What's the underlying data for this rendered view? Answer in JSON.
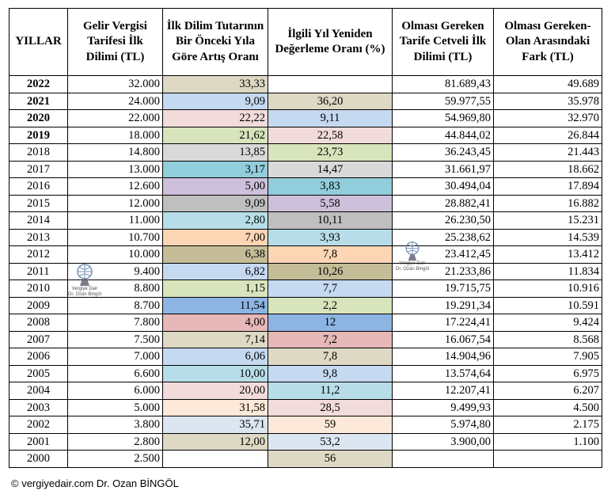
{
  "headers": [
    "YILLAR",
    "Gelir Vergisi Tarifesi İlk Dilimi (TL)",
    "İlk Dilim Tutarının Bir Önceki Yıla Göre Artış Oranı",
    "İlgili Yıl Yeniden Değerleme Oranı (%)",
    "Olması Gereken Tarife Cetveli İlk Dilimi (TL)",
    "Olması Gereken-Olan Arasındaki Fark (TL)"
  ],
  "rows": [
    {
      "year": "2022",
      "bold": true,
      "first": "32.000",
      "inc": "33,33",
      "incColor": "#ddd9c4",
      "rev": "",
      "revColor": "#ffffff",
      "should": "81.689,43",
      "diff": "49.689"
    },
    {
      "year": "2021",
      "bold": true,
      "first": "24.000",
      "inc": "9,09",
      "incColor": "#c5d9f1",
      "rev": "36,20",
      "revColor": "#ddd9c4",
      "should": "59.977,55",
      "diff": "35.978"
    },
    {
      "year": "2020",
      "bold": true,
      "first": "22.000",
      "inc": "22,22",
      "incColor": "#f2dcdb",
      "rev": "9,11",
      "revColor": "#c5d9f1",
      "should": "54.969,80",
      "diff": "32.970"
    },
    {
      "year": "2019",
      "bold": true,
      "first": "18.000",
      "inc": "21,62",
      "incColor": "#d8e4bc",
      "rev": "22,58",
      "revColor": "#f2dcdb",
      "should": "44.844,02",
      "diff": "26.844"
    },
    {
      "year": "2018",
      "bold": false,
      "first": "14.800",
      "inc": "13,85",
      "incColor": "#d9d9d9",
      "rev": "23,73",
      "revColor": "#d8e4bc",
      "should": "36.243,45",
      "diff": "21.443"
    },
    {
      "year": "2017",
      "bold": false,
      "first": "13.000",
      "inc": "3,17",
      "incColor": "#92cddc",
      "rev": "14,47",
      "revColor": "#d9d9d9",
      "should": "31.661,97",
      "diff": "18.662"
    },
    {
      "year": "2016",
      "bold": false,
      "first": "12.600",
      "inc": "5,00",
      "incColor": "#ccc0da",
      "rev": "3,83",
      "revColor": "#92cddc",
      "should": "30.494,04",
      "diff": "17.894"
    },
    {
      "year": "2015",
      "bold": false,
      "first": "12.000",
      "inc": "9,09",
      "incColor": "#bfbfbf",
      "rev": "5,58",
      "revColor": "#ccc0da",
      "should": "28.882,41",
      "diff": "16.882"
    },
    {
      "year": "2014",
      "bold": false,
      "first": "11.000",
      "inc": "2,80",
      "incColor": "#b7dee8",
      "rev": "10,11",
      "revColor": "#bfbfbf",
      "should": "26.230,50",
      "diff": "15.231"
    },
    {
      "year": "2013",
      "bold": false,
      "first": "10.700",
      "inc": "7,00",
      "incColor": "#fcd5b4",
      "rev": "3,93",
      "revColor": "#b7dee8",
      "should": "25.238,62",
      "diff": "14.539"
    },
    {
      "year": "2012",
      "bold": false,
      "first": "10.000",
      "inc": "6,38",
      "incColor": "#c4bd97",
      "rev": "7,8",
      "revColor": "#fcd5b4",
      "should": "23.412,45",
      "diff": "13.412"
    },
    {
      "year": "2011",
      "bold": false,
      "first": "9.400",
      "inc": "6,82",
      "incColor": "#c5d9f1",
      "rev": "10,26",
      "revColor": "#c4bd97",
      "should": "21.233,86",
      "diff": "11.834"
    },
    {
      "year": "2010",
      "bold": false,
      "first": "8.800",
      "inc": "1,15",
      "incColor": "#d8e4bc",
      "rev": "7,7",
      "revColor": "#c5d9f1",
      "should": "19.715,75",
      "diff": "10.916"
    },
    {
      "year": "2009",
      "bold": false,
      "first": "8.700",
      "inc": "11,54",
      "incColor": "#8db4e2",
      "rev": "2,2",
      "revColor": "#d8e4bc",
      "should": "19.291,34",
      "diff": "10.591"
    },
    {
      "year": "2008",
      "bold": false,
      "first": "7.800",
      "inc": "4,00",
      "incColor": "#e6b8b7",
      "rev": "12",
      "revColor": "#8db4e2",
      "should": "17.224,41",
      "diff": "9.424"
    },
    {
      "year": "2007",
      "bold": false,
      "first": "7.500",
      "inc": "7,14",
      "incColor": "#ddd9c4",
      "rev": "7,2",
      "revColor": "#e6b8b7",
      "should": "16.067,54",
      "diff": "8.568"
    },
    {
      "year": "2006",
      "bold": false,
      "first": "7.000",
      "inc": "6,06",
      "incColor": "#c5d9f1",
      "rev": "7,8",
      "revColor": "#ddd9c4",
      "should": "14.904,96",
      "diff": "7.905"
    },
    {
      "year": "2005",
      "bold": false,
      "first": "6.600",
      "inc": "10,00",
      "incColor": "#b7dee8",
      "rev": "9,8",
      "revColor": "#c5d9f1",
      "should": "13.574,64",
      "diff": "6.975"
    },
    {
      "year": "2004",
      "bold": false,
      "first": "6.000",
      "inc": "20,00",
      "incColor": "#f2dcdb",
      "rev": "11,2",
      "revColor": "#b7dee8",
      "should": "12.207,41",
      "diff": "6.207"
    },
    {
      "year": "2003",
      "bold": false,
      "first": "5.000",
      "inc": "31,58",
      "incColor": "#fde9d9",
      "rev": "28,5",
      "revColor": "#f2dcdb",
      "should": "9.499,93",
      "diff": "4.500"
    },
    {
      "year": "2002",
      "bold": false,
      "first": "3.800",
      "inc": "35,71",
      "incColor": "#dce6f1",
      "rev": "59",
      "revColor": "#fde9d9",
      "should": "5.974,80",
      "diff": "2.175"
    },
    {
      "year": "2001",
      "bold": false,
      "first": "2.800",
      "inc": "12,00",
      "incColor": "#ddd9c4",
      "rev": "53,2",
      "revColor": "#dce6f1",
      "should": "3.900,00",
      "diff": "1.100"
    },
    {
      "year": "2000",
      "bold": false,
      "first": "2.500",
      "inc": "",
      "incColor": "#ffffff",
      "rev": "56",
      "revColor": "#ddd9c4",
      "should": "",
      "diff": ""
    }
  ],
  "logo": {
    "line1": "Vergiye Dair",
    "line2": "Dr. Ozan Bingöl"
  },
  "footer": "© vergiyedair.com    Dr. Ozan BİNGÖL"
}
